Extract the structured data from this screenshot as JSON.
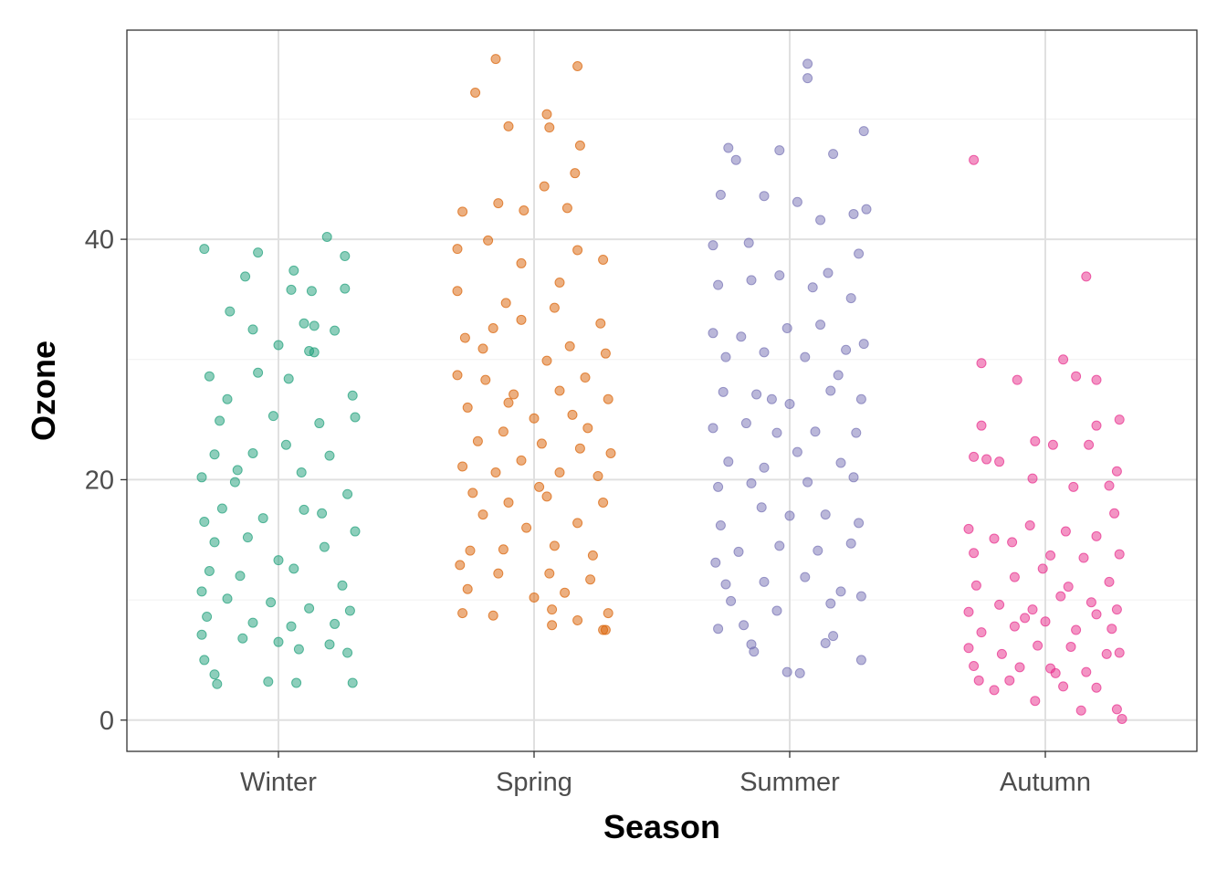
{
  "chart_data": {
    "type": "scatter",
    "subtype": "jitter",
    "title": "",
    "xlabel": "Season",
    "ylabel": "Ozone",
    "categories": [
      "Winter",
      "Spring",
      "Summer",
      "Autumn"
    ],
    "ylim": [
      -2.6,
      57.4
    ],
    "yticks": [
      0,
      20,
      40
    ],
    "ytick_labels": [
      "0",
      "20",
      "40"
    ],
    "grid": true,
    "legend": "none",
    "point_alpha": 0.5,
    "colors": {
      "Winter": "#1B9E77",
      "Spring": "#D95F02",
      "Summer": "#7570B3",
      "Autumn": "#E7298A"
    },
    "series": [
      {
        "name": "Winter",
        "points": [
          [
            -0.29,
            39.2
          ],
          [
            -0.08,
            38.9
          ],
          [
            0.19,
            40.2
          ],
          [
            0.26,
            38.6
          ],
          [
            0.06,
            37.4
          ],
          [
            -0.13,
            36.9
          ],
          [
            0.05,
            35.8
          ],
          [
            0.13,
            35.7
          ],
          [
            0.26,
            35.9
          ],
          [
            -0.19,
            34.0
          ],
          [
            -0.1,
            32.5
          ],
          [
            0.1,
            33.0
          ],
          [
            0.14,
            32.8
          ],
          [
            0.22,
            32.4
          ],
          [
            0.0,
            31.2
          ],
          [
            -0.27,
            28.6
          ],
          [
            0.12,
            30.7
          ],
          [
            -0.2,
            26.7
          ],
          [
            0.29,
            27.0
          ],
          [
            -0.23,
            24.9
          ],
          [
            -0.02,
            25.3
          ],
          [
            0.16,
            24.7
          ],
          [
            0.3,
            25.2
          ],
          [
            -0.25,
            22.1
          ],
          [
            -0.1,
            22.2
          ],
          [
            0.03,
            22.9
          ],
          [
            0.2,
            22.0
          ],
          [
            -0.3,
            20.2
          ],
          [
            -0.17,
            19.8
          ],
          [
            0.09,
            20.6
          ],
          [
            0.27,
            18.8
          ],
          [
            -0.29,
            16.5
          ],
          [
            -0.22,
            17.6
          ],
          [
            -0.06,
            16.8
          ],
          [
            0.1,
            17.5
          ],
          [
            0.3,
            15.7
          ],
          [
            -0.25,
            14.8
          ],
          [
            -0.12,
            15.2
          ],
          [
            0.0,
            13.3
          ],
          [
            0.18,
            14.4
          ],
          [
            -0.27,
            12.4
          ],
          [
            -0.15,
            12.0
          ],
          [
            0.06,
            12.6
          ],
          [
            0.25,
            11.2
          ],
          [
            -0.3,
            10.7
          ],
          [
            -0.2,
            10.1
          ],
          [
            -0.03,
            9.8
          ],
          [
            0.12,
            9.3
          ],
          [
            0.28,
            9.1
          ],
          [
            -0.28,
            8.6
          ],
          [
            -0.1,
            8.1
          ],
          [
            0.05,
            7.8
          ],
          [
            0.22,
            8.0
          ],
          [
            -0.3,
            7.1
          ],
          [
            -0.14,
            6.8
          ],
          [
            0.08,
            5.9
          ],
          [
            0.27,
            5.6
          ],
          [
            -0.29,
            5.0
          ],
          [
            -0.24,
            3.0
          ],
          [
            -0.04,
            3.2
          ],
          [
            0.07,
            3.1
          ],
          [
            0.29,
            3.1
          ],
          [
            -0.25,
            3.8
          ],
          [
            0.0,
            6.5
          ],
          [
            0.2,
            6.3
          ],
          [
            -0.08,
            28.9
          ],
          [
            0.04,
            28.4
          ],
          [
            0.14,
            30.6
          ],
          [
            -0.16,
            20.8
          ],
          [
            0.17,
            17.2
          ]
        ]
      },
      {
        "name": "Spring",
        "points": [
          [
            -0.23,
            52.2
          ],
          [
            -0.15,
            55.0
          ],
          [
            -0.1,
            49.4
          ],
          [
            0.05,
            50.4
          ],
          [
            0.17,
            54.4
          ],
          [
            0.06,
            49.3
          ],
          [
            0.18,
            47.8
          ],
          [
            0.16,
            45.5
          ],
          [
            0.04,
            44.4
          ],
          [
            -0.04,
            42.4
          ],
          [
            0.13,
            42.6
          ],
          [
            -0.28,
            42.3
          ],
          [
            -0.14,
            43.0
          ],
          [
            0.17,
            39.1
          ],
          [
            -0.3,
            39.2
          ],
          [
            -0.18,
            39.9
          ],
          [
            0.27,
            38.3
          ],
          [
            -0.05,
            38.0
          ],
          [
            0.1,
            36.4
          ],
          [
            -0.3,
            35.7
          ],
          [
            -0.11,
            34.7
          ],
          [
            0.08,
            34.3
          ],
          [
            0.26,
            33.0
          ],
          [
            -0.27,
            31.8
          ],
          [
            -0.16,
            32.6
          ],
          [
            -0.05,
            33.3
          ],
          [
            0.14,
            31.1
          ],
          [
            0.28,
            30.5
          ],
          [
            -0.3,
            28.7
          ],
          [
            -0.19,
            28.3
          ],
          [
            -0.08,
            27.1
          ],
          [
            0.05,
            29.9
          ],
          [
            0.2,
            28.5
          ],
          [
            -0.26,
            26.0
          ],
          [
            -0.1,
            26.4
          ],
          [
            0.0,
            25.1
          ],
          [
            0.15,
            25.4
          ],
          [
            0.29,
            26.7
          ],
          [
            -0.22,
            23.2
          ],
          [
            -0.12,
            24.0
          ],
          [
            0.03,
            23.0
          ],
          [
            0.18,
            22.6
          ],
          [
            0.3,
            22.2
          ],
          [
            -0.28,
            21.1
          ],
          [
            -0.15,
            20.6
          ],
          [
            -0.05,
            21.6
          ],
          [
            0.1,
            20.6
          ],
          [
            0.25,
            20.3
          ],
          [
            -0.24,
            18.9
          ],
          [
            -0.1,
            18.1
          ],
          [
            0.05,
            18.6
          ],
          [
            0.27,
            18.1
          ],
          [
            -0.2,
            17.1
          ],
          [
            -0.03,
            16.0
          ],
          [
            0.17,
            16.4
          ],
          [
            -0.25,
            14.1
          ],
          [
            -0.12,
            14.2
          ],
          [
            0.08,
            14.5
          ],
          [
            0.23,
            13.7
          ],
          [
            -0.29,
            12.9
          ],
          [
            -0.14,
            12.2
          ],
          [
            0.06,
            12.2
          ],
          [
            0.22,
            11.7
          ],
          [
            -0.26,
            10.9
          ],
          [
            0.0,
            10.2
          ],
          [
            0.12,
            10.6
          ],
          [
            -0.28,
            8.9
          ],
          [
            -0.16,
            8.7
          ],
          [
            0.07,
            9.2
          ],
          [
            0.29,
            8.9
          ],
          [
            0.17,
            8.3
          ],
          [
            0.27,
            7.5
          ],
          [
            0.07,
            7.9
          ],
          [
            0.28,
            7.5
          ],
          [
            0.02,
            19.4
          ],
          [
            -0.2,
            30.9
          ],
          [
            0.1,
            27.4
          ],
          [
            0.21,
            24.3
          ]
        ]
      },
      {
        "name": "Summer",
        "points": [
          [
            0.07,
            53.4
          ],
          [
            0.07,
            54.6
          ],
          [
            0.29,
            49.0
          ],
          [
            -0.24,
            47.6
          ],
          [
            -0.21,
            46.6
          ],
          [
            -0.04,
            47.4
          ],
          [
            0.17,
            47.1
          ],
          [
            -0.27,
            43.7
          ],
          [
            -0.1,
            43.6
          ],
          [
            0.03,
            43.1
          ],
          [
            0.12,
            41.6
          ],
          [
            0.25,
            42.1
          ],
          [
            0.3,
            42.5
          ],
          [
            -0.3,
            39.5
          ],
          [
            -0.16,
            39.7
          ],
          [
            0.27,
            38.8
          ],
          [
            0.15,
            37.2
          ],
          [
            -0.28,
            36.2
          ],
          [
            -0.15,
            36.6
          ],
          [
            -0.04,
            37.0
          ],
          [
            0.09,
            36.0
          ],
          [
            0.24,
            35.1
          ],
          [
            -0.3,
            32.2
          ],
          [
            -0.19,
            31.9
          ],
          [
            -0.01,
            32.6
          ],
          [
            0.12,
            32.9
          ],
          [
            0.29,
            31.3
          ],
          [
            -0.25,
            30.2
          ],
          [
            -0.1,
            30.6
          ],
          [
            0.06,
            30.2
          ],
          [
            0.22,
            30.8
          ],
          [
            -0.26,
            27.3
          ],
          [
            -0.13,
            27.1
          ],
          [
            0.0,
            26.3
          ],
          [
            0.16,
            27.4
          ],
          [
            0.28,
            26.7
          ],
          [
            -0.3,
            24.3
          ],
          [
            -0.17,
            24.7
          ],
          [
            -0.05,
            23.9
          ],
          [
            0.1,
            24.0
          ],
          [
            0.26,
            23.9
          ],
          [
            -0.24,
            21.5
          ],
          [
            -0.1,
            21.0
          ],
          [
            0.03,
            22.3
          ],
          [
            0.2,
            21.4
          ],
          [
            -0.28,
            19.4
          ],
          [
            -0.15,
            19.7
          ],
          [
            0.07,
            19.8
          ],
          [
            0.25,
            20.2
          ],
          [
            -0.27,
            16.2
          ],
          [
            -0.11,
            17.7
          ],
          [
            0.0,
            17.0
          ],
          [
            0.14,
            17.1
          ],
          [
            0.27,
            16.4
          ],
          [
            -0.29,
            13.1
          ],
          [
            -0.2,
            14.0
          ],
          [
            -0.04,
            14.5
          ],
          [
            0.11,
            14.1
          ],
          [
            0.24,
            14.7
          ],
          [
            -0.25,
            11.3
          ],
          [
            -0.1,
            11.5
          ],
          [
            0.06,
            11.9
          ],
          [
            0.2,
            10.7
          ],
          [
            0.28,
            10.3
          ],
          [
            -0.23,
            9.9
          ],
          [
            -0.05,
            9.1
          ],
          [
            0.16,
            9.7
          ],
          [
            -0.18,
            7.9
          ],
          [
            -0.15,
            6.3
          ],
          [
            0.14,
            6.4
          ],
          [
            -0.28,
            7.6
          ],
          [
            -0.14,
            5.7
          ],
          [
            -0.01,
            4.0
          ],
          [
            0.04,
            3.9
          ],
          [
            0.28,
            5.0
          ],
          [
            0.17,
            7.0
          ],
          [
            -0.07,
            26.7
          ],
          [
            0.19,
            28.7
          ]
        ]
      },
      {
        "name": "Autumn",
        "points": [
          [
            -0.28,
            46.6
          ],
          [
            0.16,
            36.9
          ],
          [
            -0.25,
            29.7
          ],
          [
            -0.11,
            28.3
          ],
          [
            0.07,
            30.0
          ],
          [
            0.12,
            28.6
          ],
          [
            0.2,
            28.3
          ],
          [
            -0.04,
            23.2
          ],
          [
            -0.25,
            24.5
          ],
          [
            0.2,
            24.5
          ],
          [
            0.29,
            25.0
          ],
          [
            -0.28,
            21.9
          ],
          [
            -0.23,
            21.7
          ],
          [
            0.03,
            22.9
          ],
          [
            0.17,
            22.9
          ],
          [
            -0.18,
            21.5
          ],
          [
            -0.05,
            20.1
          ],
          [
            0.11,
            19.4
          ],
          [
            0.25,
            19.5
          ],
          [
            0.28,
            20.7
          ],
          [
            -0.3,
            15.9
          ],
          [
            -0.2,
            15.1
          ],
          [
            -0.06,
            16.2
          ],
          [
            0.08,
            15.7
          ],
          [
            0.2,
            15.3
          ],
          [
            0.27,
            17.2
          ],
          [
            -0.28,
            13.9
          ],
          [
            -0.13,
            14.8
          ],
          [
            0.02,
            13.7
          ],
          [
            0.15,
            13.5
          ],
          [
            0.29,
            13.8
          ],
          [
            -0.27,
            11.2
          ],
          [
            -0.12,
            11.9
          ],
          [
            -0.01,
            12.6
          ],
          [
            0.09,
            11.1
          ],
          [
            0.25,
            11.5
          ],
          [
            -0.3,
            9.0
          ],
          [
            -0.18,
            9.6
          ],
          [
            -0.05,
            9.2
          ],
          [
            0.06,
            10.3
          ],
          [
            0.18,
            9.8
          ],
          [
            0.28,
            9.2
          ],
          [
            -0.25,
            7.3
          ],
          [
            -0.12,
            7.8
          ],
          [
            0.0,
            8.2
          ],
          [
            0.12,
            7.5
          ],
          [
            0.26,
            7.6
          ],
          [
            -0.3,
            6.0
          ],
          [
            -0.17,
            5.5
          ],
          [
            -0.03,
            6.2
          ],
          [
            0.1,
            6.1
          ],
          [
            0.24,
            5.5
          ],
          [
            -0.28,
            4.5
          ],
          [
            -0.1,
            4.4
          ],
          [
            0.02,
            4.3
          ],
          [
            0.16,
            4.0
          ],
          [
            0.29,
            5.6
          ],
          [
            -0.26,
            3.3
          ],
          [
            -0.14,
            3.3
          ],
          [
            -0.04,
            1.6
          ],
          [
            0.07,
            2.8
          ],
          [
            0.2,
            2.7
          ],
          [
            -0.2,
            2.5
          ],
          [
            0.14,
            0.8
          ],
          [
            0.28,
            0.9
          ],
          [
            0.3,
            0.1
          ],
          [
            0.04,
            3.9
          ],
          [
            -0.08,
            8.5
          ],
          [
            0.2,
            8.8
          ]
        ]
      }
    ]
  }
}
